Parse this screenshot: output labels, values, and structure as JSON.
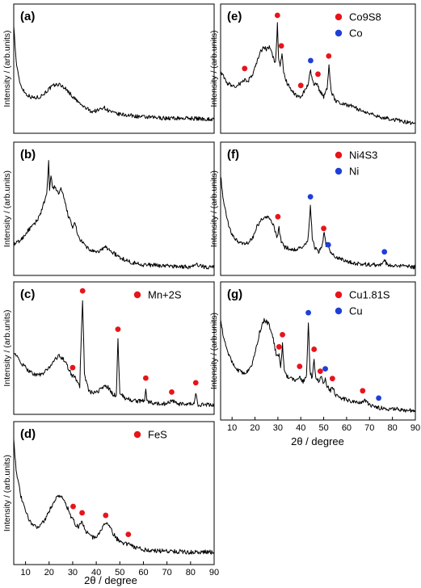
{
  "figure": {
    "ylabel": "Intensity / (arb.units)",
    "xlabel": "2θ / degree"
  },
  "colors": {
    "phase": "#e8141b",
    "metal": "#1e3fd8",
    "trace": "#000000"
  },
  "chart_data": [
    {
      "type": "line",
      "panel": "(a)",
      "xlim": [
        5,
        90
      ],
      "ylabel": "Intensity / (arb.units)",
      "x_ticks": [],
      "legend": [],
      "series": [
        {
          "x": [
            5,
            5.5,
            6,
            7,
            8,
            10,
            12,
            14,
            16,
            18,
            20,
            22,
            24,
            26,
            28,
            30,
            34,
            38,
            41,
            43,
            45,
            48,
            52,
            60,
            70,
            80,
            90
          ],
          "y": [
            0.92,
            0.75,
            0.6,
            0.46,
            0.38,
            0.31,
            0.28,
            0.27,
            0.28,
            0.31,
            0.35,
            0.38,
            0.39,
            0.37,
            0.33,
            0.28,
            0.2,
            0.15,
            0.16,
            0.19,
            0.16,
            0.13,
            0.12,
            0.1,
            0.09,
            0.09,
            0.08
          ]
        }
      ],
      "markers": []
    },
    {
      "type": "line",
      "panel": "(b)",
      "xlim": [
        5,
        90
      ],
      "ylabel": "Intensity / (arb.units)",
      "x_ticks": [],
      "legend": [],
      "series": [
        {
          "x": [
            5,
            8,
            11,
            14,
            16,
            17.5,
            19,
            19.8,
            20.2,
            20.8,
            21.5,
            22.5,
            24,
            25,
            26.5,
            28,
            30,
            31,
            32,
            34,
            37,
            40,
            43,
            44,
            46,
            50,
            55,
            60,
            70,
            80,
            83,
            86,
            90
          ],
          "y": [
            0.22,
            0.26,
            0.34,
            0.4,
            0.47,
            0.56,
            0.64,
            0.93,
            0.7,
            0.8,
            0.7,
            0.72,
            0.65,
            0.7,
            0.6,
            0.48,
            0.36,
            0.42,
            0.3,
            0.24,
            0.18,
            0.15,
            0.19,
            0.2,
            0.17,
            0.11,
            0.07,
            0.05,
            0.04,
            0.03,
            0.05,
            0.03,
            0.03
          ]
        }
      ],
      "markers": []
    },
    {
      "type": "line",
      "panel": "(c)",
      "xlim": [
        5,
        90
      ],
      "ylabel": "Intensity / (arb.units)",
      "x_ticks": [],
      "legend": [
        {
          "label": "Mn+2S",
          "color": "#e8141b"
        }
      ],
      "series": [
        {
          "x": [
            5,
            8,
            11,
            14,
            17,
            20,
            22,
            24,
            26,
            28,
            30,
            31,
            32,
            33,
            33.5,
            34.2,
            35,
            37,
            40,
            43,
            45,
            47,
            48.5,
            49.2,
            50,
            52,
            55,
            58,
            60.5,
            61,
            61.5,
            65,
            70,
            72,
            74,
            78,
            81.5,
            82.2,
            83,
            86,
            90
          ],
          "y": [
            0.5,
            0.4,
            0.34,
            0.3,
            0.3,
            0.36,
            0.42,
            0.46,
            0.44,
            0.36,
            0.28,
            0.3,
            0.22,
            0.2,
            0.55,
            0.94,
            0.3,
            0.15,
            0.14,
            0.2,
            0.19,
            0.13,
            0.12,
            0.61,
            0.14,
            0.1,
            0.08,
            0.07,
            0.08,
            0.19,
            0.07,
            0.05,
            0.05,
            0.08,
            0.05,
            0.04,
            0.05,
            0.15,
            0.04,
            0.04,
            0.04
          ]
        }
      ],
      "markers": [
        {
          "x": 30,
          "y": 0.36,
          "color": "#e8141b"
        },
        {
          "x": 34.2,
          "y": 1.02,
          "color": "#e8141b"
        },
        {
          "x": 49.2,
          "y": 0.69,
          "color": "#e8141b"
        },
        {
          "x": 61,
          "y": 0.27,
          "color": "#e8141b"
        },
        {
          "x": 72,
          "y": 0.15,
          "color": "#e8141b"
        },
        {
          "x": 82.2,
          "y": 0.23,
          "color": "#e8141b"
        }
      ]
    },
    {
      "type": "line",
      "panel": "(d)",
      "xlim": [
        5,
        90
      ],
      "ylabel": "Intensity / (arb.units)",
      "xlabel": "2θ / degree",
      "x_ticks": [
        10,
        20,
        30,
        40,
        50,
        60,
        70,
        80,
        90
      ],
      "legend": [
        {
          "label": "FeS",
          "color": "#e8141b"
        }
      ],
      "series": [
        {
          "x": [
            5,
            5.5,
            6,
            7,
            8,
            10,
            12,
            14,
            16,
            18,
            20,
            22,
            24,
            25,
            26,
            28,
            29.5,
            30,
            31,
            32.5,
            34,
            35,
            37,
            39,
            41,
            43,
            44,
            45,
            47,
            49,
            51,
            53,
            54,
            56,
            60,
            65,
            70,
            80,
            90
          ],
          "y": [
            0.97,
            0.82,
            0.72,
            0.6,
            0.5,
            0.38,
            0.3,
            0.26,
            0.27,
            0.31,
            0.38,
            0.46,
            0.51,
            0.5,
            0.48,
            0.4,
            0.32,
            0.34,
            0.28,
            0.26,
            0.31,
            0.24,
            0.2,
            0.17,
            0.2,
            0.26,
            0.3,
            0.28,
            0.21,
            0.16,
            0.14,
            0.12,
            0.14,
            0.1,
            0.08,
            0.07,
            0.07,
            0.06,
            0.06
          ]
        }
      ],
      "markers": [
        {
          "x": 30.2,
          "y": 0.42,
          "color": "#e8141b"
        },
        {
          "x": 34,
          "y": 0.37,
          "color": "#e8141b"
        },
        {
          "x": 44,
          "y": 0.35,
          "color": "#e8141b"
        },
        {
          "x": 53.6,
          "y": 0.2,
          "color": "#e8141b"
        }
      ]
    },
    {
      "type": "line",
      "panel": "(e)",
      "xlim": [
        5,
        90
      ],
      "ylabel": "Intensity / (arb.units)",
      "x_ticks": [],
      "legend": [
        {
          "label": "Co9S8",
          "color": "#e8141b"
        },
        {
          "label": "Co",
          "color": "#1e3fd8"
        }
      ],
      "series": [
        {
          "x": [
            5,
            8,
            11,
            14,
            15.5,
            17,
            19,
            21,
            22.5,
            24,
            25,
            26.5,
            28,
            29,
            29.8,
            30.3,
            31,
            31.8,
            32.5,
            34,
            36,
            38,
            40,
            41.5,
            43,
            44.3,
            45,
            46,
            47,
            48,
            50,
            51.5,
            52.3,
            53.2,
            55,
            58,
            62,
            66,
            70,
            75,
            80,
            85,
            90
          ],
          "y": [
            0.5,
            0.4,
            0.37,
            0.4,
            0.43,
            0.42,
            0.48,
            0.6,
            0.68,
            0.72,
            0.7,
            0.72,
            0.62,
            0.58,
            0.92,
            0.62,
            0.55,
            0.66,
            0.5,
            0.4,
            0.33,
            0.29,
            0.28,
            0.33,
            0.38,
            0.52,
            0.42,
            0.38,
            0.4,
            0.34,
            0.28,
            0.36,
            0.56,
            0.33,
            0.25,
            0.22,
            0.2,
            0.16,
            0.13,
            0.1,
            0.08,
            0.06,
            0.04
          ]
        }
      ],
      "markers": [
        {
          "x": 15.5,
          "y": 0.53,
          "color": "#e8141b"
        },
        {
          "x": 29.8,
          "y": 1.0,
          "color": "#e8141b"
        },
        {
          "x": 31.5,
          "y": 0.73,
          "color": "#e8141b"
        },
        {
          "x": 40,
          "y": 0.38,
          "color": "#e8141b"
        },
        {
          "x": 47.5,
          "y": 0.48,
          "color": "#e8141b"
        },
        {
          "x": 52.2,
          "y": 0.64,
          "color": "#e8141b"
        },
        {
          "x": 44.3,
          "y": 0.6,
          "color": "#1e3fd8"
        }
      ]
    },
    {
      "type": "line",
      "panel": "(f)",
      "xlim": [
        5,
        90
      ],
      "ylabel": "Intensity / (arb.units)",
      "x_ticks": [],
      "legend": [
        {
          "label": "Ni4S3",
          "color": "#e8141b"
        },
        {
          "label": "Ni",
          "color": "#1e3fd8"
        }
      ],
      "series": [
        {
          "x": [
            5,
            6,
            8,
            10,
            13,
            16,
            19,
            21,
            23,
            25,
            27,
            28.5,
            29.5,
            30.5,
            31.5,
            33,
            36,
            40,
            43,
            44.2,
            45,
            46,
            48,
            49.5,
            50.2,
            51,
            51.8,
            53,
            56,
            60,
            65,
            70,
            75,
            76.5,
            78,
            82,
            90
          ],
          "y": [
            0.82,
            0.62,
            0.42,
            0.3,
            0.24,
            0.22,
            0.28,
            0.38,
            0.44,
            0.46,
            0.43,
            0.36,
            0.28,
            0.36,
            0.24,
            0.2,
            0.18,
            0.19,
            0.24,
            0.55,
            0.28,
            0.2,
            0.16,
            0.22,
            0.34,
            0.22,
            0.24,
            0.15,
            0.11,
            0.08,
            0.06,
            0.05,
            0.05,
            0.09,
            0.04,
            0.04,
            0.03
          ]
        }
      ],
      "markers": [
        {
          "x": 30,
          "y": 0.46,
          "color": "#e8141b"
        },
        {
          "x": 50,
          "y": 0.36,
          "color": "#e8141b"
        },
        {
          "x": 44.2,
          "y": 0.63,
          "color": "#1e3fd8"
        },
        {
          "x": 52,
          "y": 0.22,
          "color": "#1e3fd8"
        },
        {
          "x": 76.5,
          "y": 0.16,
          "color": "#1e3fd8"
        }
      ]
    },
    {
      "type": "line",
      "panel": "(g)",
      "xlim": [
        5,
        90
      ],
      "ylabel": "Intensity / (arb.units)",
      "xlabel": "2θ / degree",
      "x_ticks": [
        10,
        20,
        30,
        40,
        50,
        60,
        70,
        80,
        90
      ],
      "legend": [
        {
          "label": "Cu1.81S",
          "color": "#e8141b"
        },
        {
          "label": "Cu",
          "color": "#1e3fd8"
        }
      ],
      "series": [
        {
          "x": [
            5,
            6,
            8,
            10,
            12,
            14,
            16,
            18,
            20,
            22,
            24,
            26,
            28,
            29.5,
            30.5,
            31.2,
            32,
            32.8,
            34,
            36,
            38,
            39.5,
            41,
            42.5,
            43.3,
            44,
            45,
            45.8,
            46.6,
            48,
            49,
            50,
            50.7,
            51.5,
            53,
            53.8,
            55,
            58,
            62,
            66,
            68,
            70,
            74,
            78,
            82,
            86,
            90
          ],
          "y": [
            0.8,
            0.66,
            0.52,
            0.44,
            0.38,
            0.35,
            0.35,
            0.38,
            0.5,
            0.68,
            0.78,
            0.75,
            0.62,
            0.48,
            0.5,
            0.38,
            0.58,
            0.36,
            0.32,
            0.3,
            0.28,
            0.32,
            0.27,
            0.32,
            0.76,
            0.36,
            0.3,
            0.46,
            0.3,
            0.28,
            0.32,
            0.26,
            0.3,
            0.24,
            0.2,
            0.24,
            0.17,
            0.14,
            0.11,
            0.1,
            0.12,
            0.08,
            0.06,
            0.05,
            0.05,
            0.04,
            0.04
          ]
        }
      ],
      "markers": [
        {
          "x": 30.5,
          "y": 0.56,
          "color": "#e8141b"
        },
        {
          "x": 32,
          "y": 0.66,
          "color": "#e8141b"
        },
        {
          "x": 39.5,
          "y": 0.4,
          "color": "#e8141b"
        },
        {
          "x": 45.8,
          "y": 0.54,
          "color": "#e8141b"
        },
        {
          "x": 48.5,
          "y": 0.36,
          "color": "#e8141b"
        },
        {
          "x": 53.8,
          "y": 0.3,
          "color": "#e8141b"
        },
        {
          "x": 67,
          "y": 0.2,
          "color": "#e8141b"
        },
        {
          "x": 43.3,
          "y": 0.84,
          "color": "#1e3fd8"
        },
        {
          "x": 50.7,
          "y": 0.38,
          "color": "#1e3fd8"
        },
        {
          "x": 74,
          "y": 0.14,
          "color": "#1e3fd8"
        }
      ]
    }
  ]
}
